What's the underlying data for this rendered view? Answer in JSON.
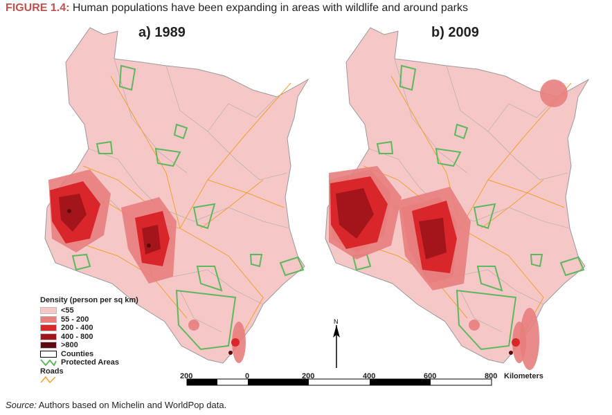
{
  "figure": {
    "label": "FIGURE 1.4:",
    "title": " Human populations have been expanding in areas with wildlife and around parks"
  },
  "panels": [
    {
      "title": "a) 1989"
    },
    {
      "title": "b) 2009"
    }
  ],
  "legend": {
    "title": "Density (person per sq km)",
    "items": [
      {
        "label": "<55",
        "color": "#f6c7c7"
      },
      {
        "label": "55 - 200",
        "color": "#e87e7e"
      },
      {
        "label": "200 - 400",
        "color": "#d9262b"
      },
      {
        "label": "400 - 800",
        "color": "#a3151a"
      },
      {
        "label": ">800",
        "color": "#5c0a0d"
      },
      {
        "label": "Counties",
        "color": "#ffffff"
      },
      {
        "label": "Protected Areas",
        "color": "#5cb85c"
      },
      {
        "label": "Roads",
        "color": "#f0a030"
      }
    ]
  },
  "scale_bar": {
    "ticks": [
      "200",
      "0",
      "200",
      "400",
      "600",
      "800"
    ],
    "unit": "Kilometers"
  },
  "north_arrow": {
    "label": "N"
  },
  "source": {
    "label": "Source:",
    "text": " Authors based on Michelin and WorldPop data."
  }
}
